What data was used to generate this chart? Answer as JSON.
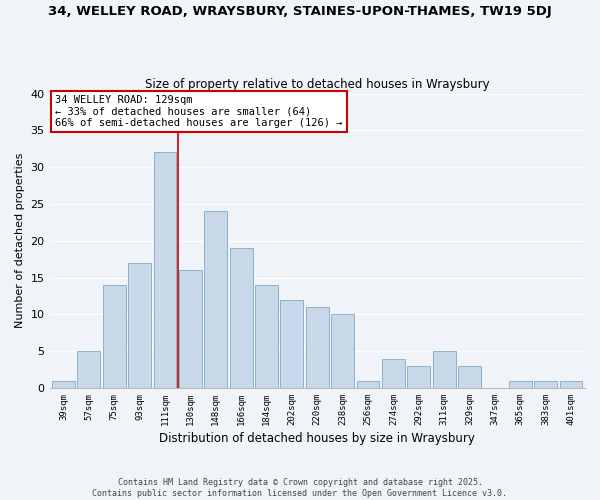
{
  "title": "34, WELLEY ROAD, WRAYSBURY, STAINES-UPON-THAMES, TW19 5DJ",
  "subtitle": "Size of property relative to detached houses in Wraysbury",
  "xlabel": "Distribution of detached houses by size in Wraysbury",
  "ylabel": "Number of detached properties",
  "bar_labels": [
    "39sqm",
    "57sqm",
    "75sqm",
    "93sqm",
    "111sqm",
    "130sqm",
    "148sqm",
    "166sqm",
    "184sqm",
    "202sqm",
    "220sqm",
    "238sqm",
    "256sqm",
    "274sqm",
    "292sqm",
    "311sqm",
    "329sqm",
    "347sqm",
    "365sqm",
    "383sqm",
    "401sqm"
  ],
  "bar_values": [
    1,
    5,
    14,
    17,
    32,
    16,
    24,
    19,
    14,
    12,
    11,
    10,
    1,
    4,
    3,
    5,
    3,
    0,
    1,
    1,
    1
  ],
  "bar_color": "#c8d8e8",
  "bar_edgecolor": "#8ab4cc",
  "background_color": "#f0f4f8",
  "grid_color": "#ffffff",
  "ylim": [
    0,
    40
  ],
  "yticks": [
    0,
    5,
    10,
    15,
    20,
    25,
    30,
    35,
    40
  ],
  "vline_x_index": 5,
  "vline_color": "#cc0000",
  "annotation_title": "34 WELLEY ROAD: 129sqm",
  "annotation_line1": "← 33% of detached houses are smaller (64)",
  "annotation_line2": "66% of semi-detached houses are larger (126) →",
  "annotation_box_color": "#ffffff",
  "annotation_box_edgecolor": "#cc0000",
  "footer_line1": "Contains HM Land Registry data © Crown copyright and database right 2025.",
  "footer_line2": "Contains public sector information licensed under the Open Government Licence v3.0."
}
